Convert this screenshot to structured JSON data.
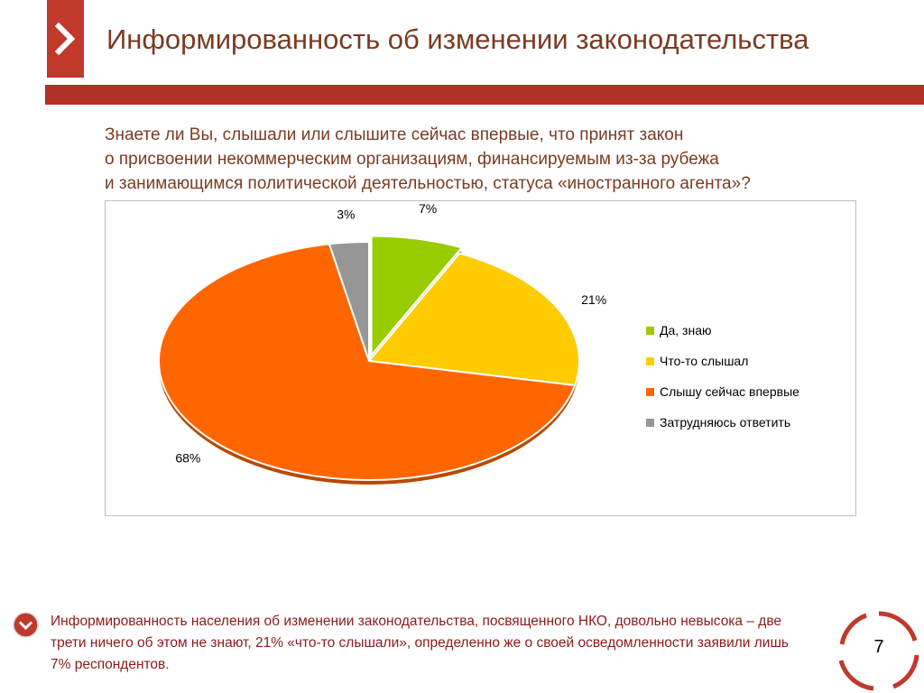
{
  "title": "Информированность об изменении законодательства",
  "question": [
    "Знаете ли Вы, слышали или слышите сейчас впервые, что принят закон",
    "о присвоении некоммерческим организациям, финансируемым из-за рубежа",
    "и занимающимся политической деятельностью, статуса «иностранного агента»?"
  ],
  "chart_data": {
    "type": "pie",
    "title": "",
    "unit": "%",
    "slices": [
      {
        "label": "Да, знаю",
        "value": 7,
        "color": "#99cc00"
      },
      {
        "label": "Что-то слышал",
        "value": 21,
        "color": "#ffcc00"
      },
      {
        "label": "Слышу сейчас впервые",
        "value": 68,
        "color": "#ff6600"
      },
      {
        "label": "Затрудняюсь ответить",
        "value": 3,
        "color": "#969696"
      }
    ],
    "exploded_slice": "Да, знаю",
    "legend_position": "right"
  },
  "conclusion": "Информированность населения об изменении законодательства, посвященного НКО, довольно невысока – две трети ничего об этом не знают, 21% «что-то слышали», определенно же о своей осведомленности заявили лишь 7% респондентов.",
  "page_number": "7",
  "colors": {
    "brand_red": "#b13127",
    "title_brown": "#7a3b22",
    "conclusion_red": "#8b1a1a"
  }
}
